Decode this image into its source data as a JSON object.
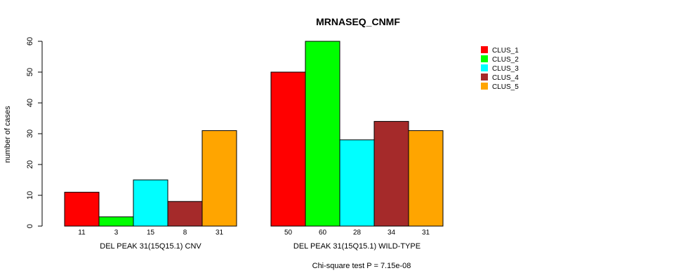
{
  "chart_data": {
    "type": "bar",
    "title": "MRNASEQ_CNMF",
    "ylabel": "number of cases",
    "xlabel": "",
    "ylim": [
      0,
      60
    ],
    "yticks": [
      0,
      10,
      20,
      30,
      40,
      50,
      60
    ],
    "footnote": "Chi-square test P = 7.15e-08",
    "groups": [
      {
        "label": "DEL PEAK 31(15Q15.1) CNV",
        "values": [
          11,
          3,
          15,
          8,
          31
        ],
        "value_labels": [
          "11",
          "3",
          "15",
          "8",
          "31"
        ]
      },
      {
        "label": "DEL PEAK 31(15Q15.1) WILD-TYPE",
        "values": [
          50,
          60,
          28,
          34,
          31
        ],
        "value_labels": [
          "50",
          "60",
          "28",
          "34",
          "31"
        ]
      }
    ],
    "series": [
      {
        "name": "CLUS_1",
        "color": "#ff0000"
      },
      {
        "name": "CLUS_2",
        "color": "#00ff00"
      },
      {
        "name": "CLUS_3",
        "color": "#00ffff"
      },
      {
        "name": "CLUS_4",
        "color": "#a52a2a"
      },
      {
        "name": "CLUS_5",
        "color": "#ffa500"
      }
    ],
    "legend_position": "top-right"
  }
}
